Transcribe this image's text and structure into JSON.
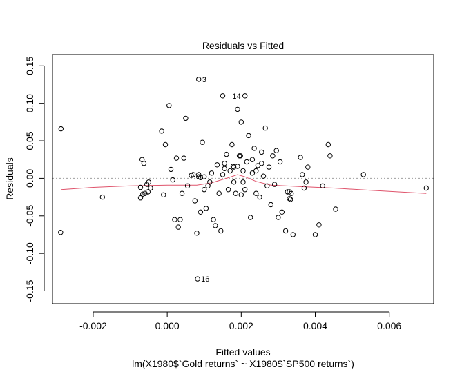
{
  "chart_data": {
    "type": "scatter",
    "title": "Residuals vs Fitted",
    "xlabel": "Fitted values",
    "sublabel": "lm(X1980$`Gold returns` ~ X1980$`SP500 returns`)",
    "ylabel": "Residuals",
    "xlim": [
      -0.0031,
      0.0072
    ],
    "ylim": [
      -0.167,
      0.165
    ],
    "xticks": [
      -0.002,
      0.0,
      0.002,
      0.004,
      0.006
    ],
    "xtick_labels": [
      "-0.002",
      "0.000",
      "0.002",
      "0.004",
      "0.006"
    ],
    "yticks": [
      -0.15,
      -0.1,
      -0.05,
      0.0,
      0.05,
      0.1,
      0.15
    ],
    "ytick_labels": [
      "-0.15",
      "-0.10",
      "-0.05",
      "0.00",
      "0.05",
      "0.10",
      "0.15"
    ],
    "reference_line": {
      "y": 0,
      "color": "#9e9e9e",
      "style": "dotted"
    },
    "smooth_color": "#df536b",
    "point_color": "#000000",
    "grid": false,
    "points": [
      [
        -0.00287,
        0.066
      ],
      [
        -0.00288,
        -0.072
      ],
      [
        -0.00175,
        -0.025
      ],
      [
        -0.00072,
        -0.012
      ],
      [
        -0.00072,
        -0.026
      ],
      [
        -0.00068,
        0.025
      ],
      [
        -0.00066,
        -0.021
      ],
      [
        -0.00063,
        0.02
      ],
      [
        -0.0006,
        -0.02
      ],
      [
        -0.00055,
        -0.008
      ],
      [
        -0.00052,
        -0.018
      ],
      [
        -0.0005,
        -0.005
      ],
      [
        -0.00045,
        -0.013
      ],
      [
        -0.00015,
        0.063
      ],
      [
        -0.0001,
        -0.022
      ],
      [
        -5e-05,
        0.045
      ],
      [
        5e-05,
        0.097
      ],
      [
        0.0001,
        0.012
      ],
      [
        0.00015,
        -0.002
      ],
      [
        0.0002,
        -0.055
      ],
      [
        0.00025,
        0.027
      ],
      [
        0.0003,
        -0.065
      ],
      [
        0.00035,
        -0.055
      ],
      [
        0.0004,
        -0.02
      ],
      [
        0.00045,
        0.027
      ],
      [
        0.0005,
        0.08
      ],
      [
        0.00055,
        -0.01
      ],
      [
        0.0007,
        0.005
      ],
      [
        0.00075,
        -0.03
      ],
      [
        0.0008,
        -0.073
      ],
      [
        0.00085,
        0.005
      ],
      [
        0.0009,
        -0.045
      ],
      [
        0.00095,
        0.048
      ],
      [
        0.001,
        -0.015
      ],
      [
        0.00105,
        -0.04
      ],
      [
        0.0011,
        -0.01
      ],
      [
        0.00115,
        -0.005
      ],
      [
        0.0012,
        0.007
      ],
      [
        0.00125,
        -0.055
      ],
      [
        0.0013,
        -0.063
      ],
      [
        0.00135,
        0.018
      ],
      [
        0.0014,
        -0.02
      ],
      [
        0.00145,
        -0.07
      ],
      [
        0.0015,
        0.005
      ],
      [
        0.00155,
        0.013
      ],
      [
        0.0016,
        0.032
      ],
      [
        0.00165,
        -0.015
      ],
      [
        0.0017,
        0.01
      ],
      [
        0.00175,
        0.045
      ],
      [
        0.0018,
        0.015
      ],
      [
        0.00185,
        -0.02
      ],
      [
        0.0019,
        0.092
      ],
      [
        0.00195,
        0.03
      ],
      [
        0.002,
        0.075
      ],
      [
        0.00205,
        -0.005
      ],
      [
        0.0021,
        -0.015
      ],
      [
        0.00215,
        0.022
      ],
      [
        0.0022,
        0.057
      ],
      [
        0.00225,
        -0.052
      ],
      [
        0.0023,
        0.007
      ],
      [
        0.00235,
        0.04
      ],
      [
        0.0024,
        -0.02
      ],
      [
        0.00245,
        0.017
      ],
      [
        0.0025,
        -0.025
      ],
      [
        0.00255,
        0.035
      ],
      [
        0.0026,
        0.003
      ],
      [
        0.00265,
        0.067
      ],
      [
        0.0027,
        -0.01
      ],
      [
        0.00275,
        0.015
      ],
      [
        0.0028,
        -0.035
      ],
      [
        0.00285,
        0.03
      ],
      [
        0.0029,
        -0.008
      ],
      [
        0.00295,
        0.037
      ],
      [
        0.003,
        -0.052
      ],
      [
        0.00305,
        0.022
      ],
      [
        0.0031,
        -0.045
      ],
      [
        0.0032,
        -0.07
      ],
      [
        0.00325,
        -0.018
      ],
      [
        0.0033,
        -0.027
      ],
      [
        0.00335,
        -0.02
      ],
      [
        0.0034,
        -0.075
      ],
      [
        0.0036,
        0.028
      ],
      [
        0.00365,
        0.005
      ],
      [
        0.0037,
        -0.013
      ],
      [
        0.00375,
        -0.005
      ],
      [
        0.0038,
        0.015
      ],
      [
        0.004,
        -0.075
      ],
      [
        0.0041,
        -0.062
      ],
      [
        0.0042,
        -0.01
      ],
      [
        0.00435,
        0.045
      ],
      [
        0.0044,
        0.03
      ],
      [
        0.00455,
        -0.041
      ],
      [
        0.0053,
        0.005
      ],
      [
        0.007,
        -0.013
      ],
      [
        0.00065,
        0.004
      ],
      [
        0.00085,
        0.002
      ],
      [
        0.00178,
        0.016
      ],
      [
        0.0019,
        0.016
      ],
      [
        0.00198,
        0.03
      ],
      [
        0.00205,
        0.01
      ],
      [
        0.0023,
        0.025
      ],
      [
        0.0024,
        0.01
      ],
      [
        0.00155,
        0.02
      ],
      [
        0.0018,
        -0.005
      ],
      [
        0.002,
        -0.022
      ],
      [
        0.00255,
        0.02
      ],
      [
        0.00333,
        -0.028
      ],
      [
        0.0033,
        -0.018
      ],
      [
        0.001,
        0.002
      ],
      [
        0.0009,
        0.001
      ]
    ],
    "labeled_points": [
      {
        "label": "3",
        "x": 0.00085,
        "y": 0.132
      },
      {
        "label": "14",
        "x": 0.0021,
        "y": 0.11
      },
      {
        "label": "16",
        "x": 0.00082,
        "y": -0.134
      }
    ],
    "extra_points": [
      [
        0.0015,
        0.11
      ]
    ],
    "smooth_line": [
      [
        -0.00287,
        -0.015
      ],
      [
        -0.002,
        -0.012
      ],
      [
        -0.001,
        -0.01
      ],
      [
        0.0,
        -0.009
      ],
      [
        0.0008,
        -0.009
      ],
      [
        0.0012,
        -0.006
      ],
      [
        0.0016,
        0.0
      ],
      [
        0.0019,
        0.005
      ],
      [
        0.0021,
        0.002
      ],
      [
        0.0024,
        -0.004
      ],
      [
        0.0028,
        -0.009
      ],
      [
        0.0032,
        -0.01
      ],
      [
        0.0036,
        -0.011
      ],
      [
        0.0045,
        -0.013
      ],
      [
        0.0055,
        -0.016
      ],
      [
        0.007,
        -0.02
      ]
    ]
  }
}
